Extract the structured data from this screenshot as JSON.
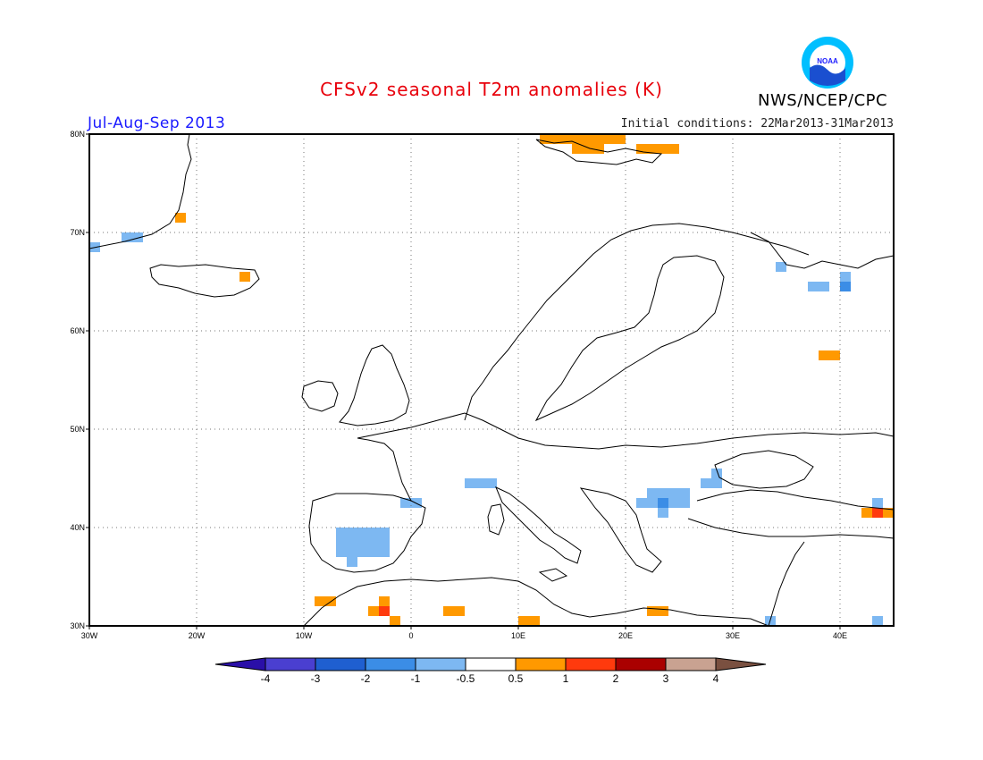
{
  "title": "CFSv2 seasonal T2m anomalies (K)",
  "season": "Jul-Aug-Sep 2013",
  "initial_conditions": "Initial conditions: 22Mar2013-31Mar2013",
  "agency": "NWS/NCEP/CPC",
  "logo_icon": "noaa-logo-icon",
  "map": {
    "lon_range": [
      -30,
      45
    ],
    "lat_range": [
      30,
      80
    ],
    "lon_ticks": [
      "30W",
      "20W",
      "10W",
      "0",
      "10E",
      "20E",
      "30E",
      "40E"
    ],
    "lat_ticks": [
      "30N",
      "40N",
      "50N",
      "60N",
      "70N",
      "80N"
    ],
    "grid": "dotted"
  },
  "colorbar": {
    "labels": [
      "-4",
      "-3",
      "-2",
      "-1",
      "-0.5",
      "0.5",
      "1",
      "2",
      "3",
      "4"
    ],
    "colors": [
      "#2a0fa8",
      "#4a3fd0",
      "#1f5fd0",
      "#3b8de6",
      "#7db8f2",
      "#ffffff",
      "#ff9900",
      "#ff3a0d",
      "#aa0000",
      "#c9a291",
      "#7a5040"
    ]
  },
  "chart_data": {
    "type": "heatmap",
    "variable": "T2m anomaly",
    "units": "K",
    "cells": [
      {
        "lon": -29.5,
        "lat": 68.5,
        "v": -0.75
      },
      {
        "lon": -26.5,
        "lat": 69.5,
        "v": -0.75
      },
      {
        "lon": -25.5,
        "lat": 69.5,
        "v": -0.75
      },
      {
        "lon": -21.5,
        "lat": 71.5,
        "v": 0.75
      },
      {
        "lon": -15.5,
        "lat": 65.5,
        "v": 0.75
      },
      {
        "lon": 12.5,
        "lat": 79.5,
        "v": 0.75
      },
      {
        "lon": 13.5,
        "lat": 79.5,
        "v": 0.75
      },
      {
        "lon": 14.5,
        "lat": 79.5,
        "v": 0.75
      },
      {
        "lon": 15.5,
        "lat": 79.5,
        "v": 0.75
      },
      {
        "lon": 16.5,
        "lat": 79.5,
        "v": 0.75
      },
      {
        "lon": 17.5,
        "lat": 79.5,
        "v": 0.75
      },
      {
        "lon": 18.5,
        "lat": 79.5,
        "v": 0.75
      },
      {
        "lon": 19.5,
        "lat": 79.5,
        "v": 0.75
      },
      {
        "lon": 15.5,
        "lat": 78.5,
        "v": 0.75
      },
      {
        "lon": 16.5,
        "lat": 78.5,
        "v": 0.75
      },
      {
        "lon": 17.5,
        "lat": 78.5,
        "v": 0.75
      },
      {
        "lon": 21.5,
        "lat": 78.5,
        "v": 0.75
      },
      {
        "lon": 22.5,
        "lat": 78.5,
        "v": 0.75
      },
      {
        "lon": 23.5,
        "lat": 78.5,
        "v": 0.75
      },
      {
        "lon": 24.5,
        "lat": 78.5,
        "v": 0.75
      },
      {
        "lon": 34.5,
        "lat": 66.5,
        "v": -0.75
      },
      {
        "lon": 37.5,
        "lat": 64.5,
        "v": -0.75
      },
      {
        "lon": 38.5,
        "lat": 64.5,
        "v": -0.75
      },
      {
        "lon": 40.5,
        "lat": 65.5,
        "v": -0.75
      },
      {
        "lon": 40.5,
        "lat": 64.5,
        "v": -1.5
      },
      {
        "lon": 38.5,
        "lat": 57.5,
        "v": 0.75
      },
      {
        "lon": 39.5,
        "lat": 57.5,
        "v": 0.75
      },
      {
        "lon": -0.5,
        "lat": 42.5,
        "v": -0.75
      },
      {
        "lon": 0.5,
        "lat": 42.5,
        "v": -0.75
      },
      {
        "lon": 5.5,
        "lat": 44.5,
        "v": -0.75
      },
      {
        "lon": 6.5,
        "lat": 44.5,
        "v": -0.75
      },
      {
        "lon": 7.5,
        "lat": 44.5,
        "v": -0.75
      },
      {
        "lon": 21.5,
        "lat": 42.5,
        "v": -0.75
      },
      {
        "lon": 22.5,
        "lat": 43.5,
        "v": -0.75
      },
      {
        "lon": 23.5,
        "lat": 43.5,
        "v": -0.75
      },
      {
        "lon": 24.5,
        "lat": 43.5,
        "v": -0.75
      },
      {
        "lon": 25.5,
        "lat": 43.5,
        "v": -0.75
      },
      {
        "lon": 22.5,
        "lat": 42.5,
        "v": -0.75
      },
      {
        "lon": 23.5,
        "lat": 42.5,
        "v": -1.5
      },
      {
        "lon": 24.5,
        "lat": 42.5,
        "v": -0.75
      },
      {
        "lon": 25.5,
        "lat": 42.5,
        "v": -0.75
      },
      {
        "lon": 23.5,
        "lat": 41.5,
        "v": -0.75
      },
      {
        "lon": 27.5,
        "lat": 44.5,
        "v": -0.75
      },
      {
        "lon": 28.5,
        "lat": 44.5,
        "v": -0.75
      },
      {
        "lon": 28.5,
        "lat": 45.5,
        "v": -0.75
      },
      {
        "lon": -6.5,
        "lat": 39.5,
        "v": -0.75
      },
      {
        "lon": -5.5,
        "lat": 39.5,
        "v": -0.75
      },
      {
        "lon": -4.5,
        "lat": 39.5,
        "v": -0.75
      },
      {
        "lon": -3.5,
        "lat": 39.5,
        "v": -0.75
      },
      {
        "lon": -2.5,
        "lat": 39.5,
        "v": -0.75
      },
      {
        "lon": -6.5,
        "lat": 38.5,
        "v": -0.75
      },
      {
        "lon": -5.5,
        "lat": 38.5,
        "v": -0.75
      },
      {
        "lon": -4.5,
        "lat": 38.5,
        "v": -0.75
      },
      {
        "lon": -3.5,
        "lat": 38.5,
        "v": -0.75
      },
      {
        "lon": -2.5,
        "lat": 38.5,
        "v": -0.75
      },
      {
        "lon": -6.5,
        "lat": 37.5,
        "v": -0.75
      },
      {
        "lon": -5.5,
        "lat": 37.5,
        "v": -0.75
      },
      {
        "lon": -4.5,
        "lat": 37.5,
        "v": -0.75
      },
      {
        "lon": -3.5,
        "lat": 37.5,
        "v": -0.75
      },
      {
        "lon": -2.5,
        "lat": 37.5,
        "v": -0.75
      },
      {
        "lon": -5.5,
        "lat": 36.5,
        "v": -0.75
      },
      {
        "lon": -8.5,
        "lat": 32.5,
        "v": 0.75
      },
      {
        "lon": -7.5,
        "lat": 32.5,
        "v": 0.75
      },
      {
        "lon": -2.5,
        "lat": 32.5,
        "v": 0.75
      },
      {
        "lon": -2.5,
        "lat": 31.5,
        "v": 1.5
      },
      {
        "lon": -3.5,
        "lat": 31.5,
        "v": 0.75
      },
      {
        "lon": -1.5,
        "lat": 30.5,
        "v": 0.75
      },
      {
        "lon": 3.5,
        "lat": 31.5,
        "v": 0.75
      },
      {
        "lon": 4.5,
        "lat": 31.5,
        "v": 0.75
      },
      {
        "lon": 10.5,
        "lat": 30.5,
        "v": 0.75
      },
      {
        "lon": 11.5,
        "lat": 30.5,
        "v": 0.75
      },
      {
        "lon": 22.5,
        "lat": 31.5,
        "v": 0.75
      },
      {
        "lon": 23.5,
        "lat": 31.5,
        "v": 0.75
      },
      {
        "lon": 33.5,
        "lat": 30.5,
        "v": -0.75
      },
      {
        "lon": 43.5,
        "lat": 30.5,
        "v": -0.75
      },
      {
        "lon": 43.5,
        "lat": 42.5,
        "v": -0.75
      },
      {
        "lon": 42.5,
        "lat": 41.5,
        "v": 0.75
      },
      {
        "lon": 43.5,
        "lat": 41.5,
        "v": 1.5
      },
      {
        "lon": 44.5,
        "lat": 41.5,
        "v": 0.75
      }
    ]
  }
}
